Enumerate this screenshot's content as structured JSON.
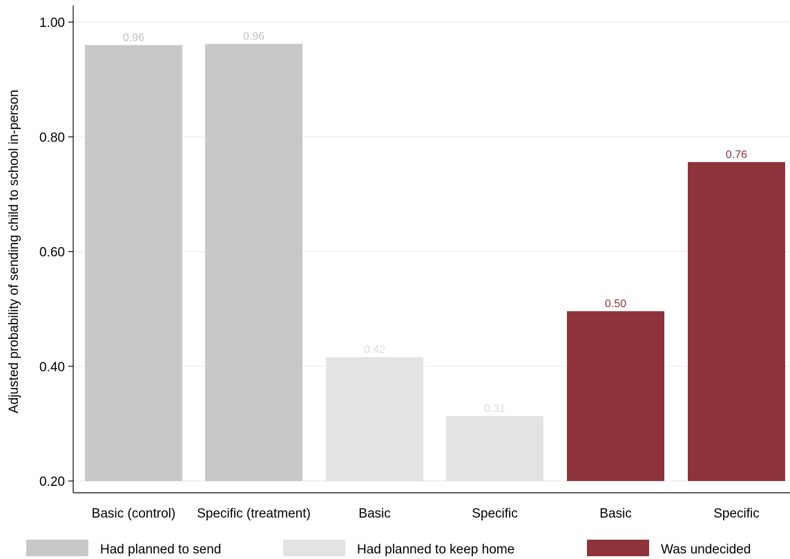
{
  "chart_data": {
    "type": "bar",
    "ylabel": "Adjusted probability of sending child to school in-person",
    "xlabel": "",
    "ylim": [
      0.2,
      1.02
    ],
    "yticks": [
      "0.20",
      "0.40",
      "0.60",
      "0.80",
      "1.00"
    ],
    "ytick_values": [
      0.2,
      0.4,
      0.6,
      0.8,
      1.0
    ],
    "grid": "horizontal",
    "legend_placement": "bottom",
    "categories": [
      "Basic (control)",
      "Specific (treatment)",
      "Basic",
      "Specific",
      "Basic",
      "Specific"
    ],
    "series": [
      {
        "name": "Had planned to send",
        "color": "#c8c8c8",
        "label_color": "#c0c0c0",
        "values": [
          0.96,
          0.962,
          null,
          null,
          null,
          null
        ],
        "labels": [
          "0.96",
          "0.96",
          "",
          "",
          "",
          ""
        ]
      },
      {
        "name": "Had planned to keep home",
        "color": "#e3e3e3",
        "label_color": "#dcdcdc",
        "values": [
          null,
          null,
          0.416,
          0.313,
          null,
          null
        ],
        "labels": [
          "",
          "",
          "0.42",
          "0.31",
          "",
          ""
        ]
      },
      {
        "name": "Was undecided",
        "color": "#8e333b",
        "label_color": "#8e333b",
        "values": [
          null,
          null,
          null,
          null,
          0.496,
          0.756
        ],
        "labels": [
          "",
          "",
          "",
          "",
          "0.50",
          "0.76"
        ]
      }
    ]
  }
}
